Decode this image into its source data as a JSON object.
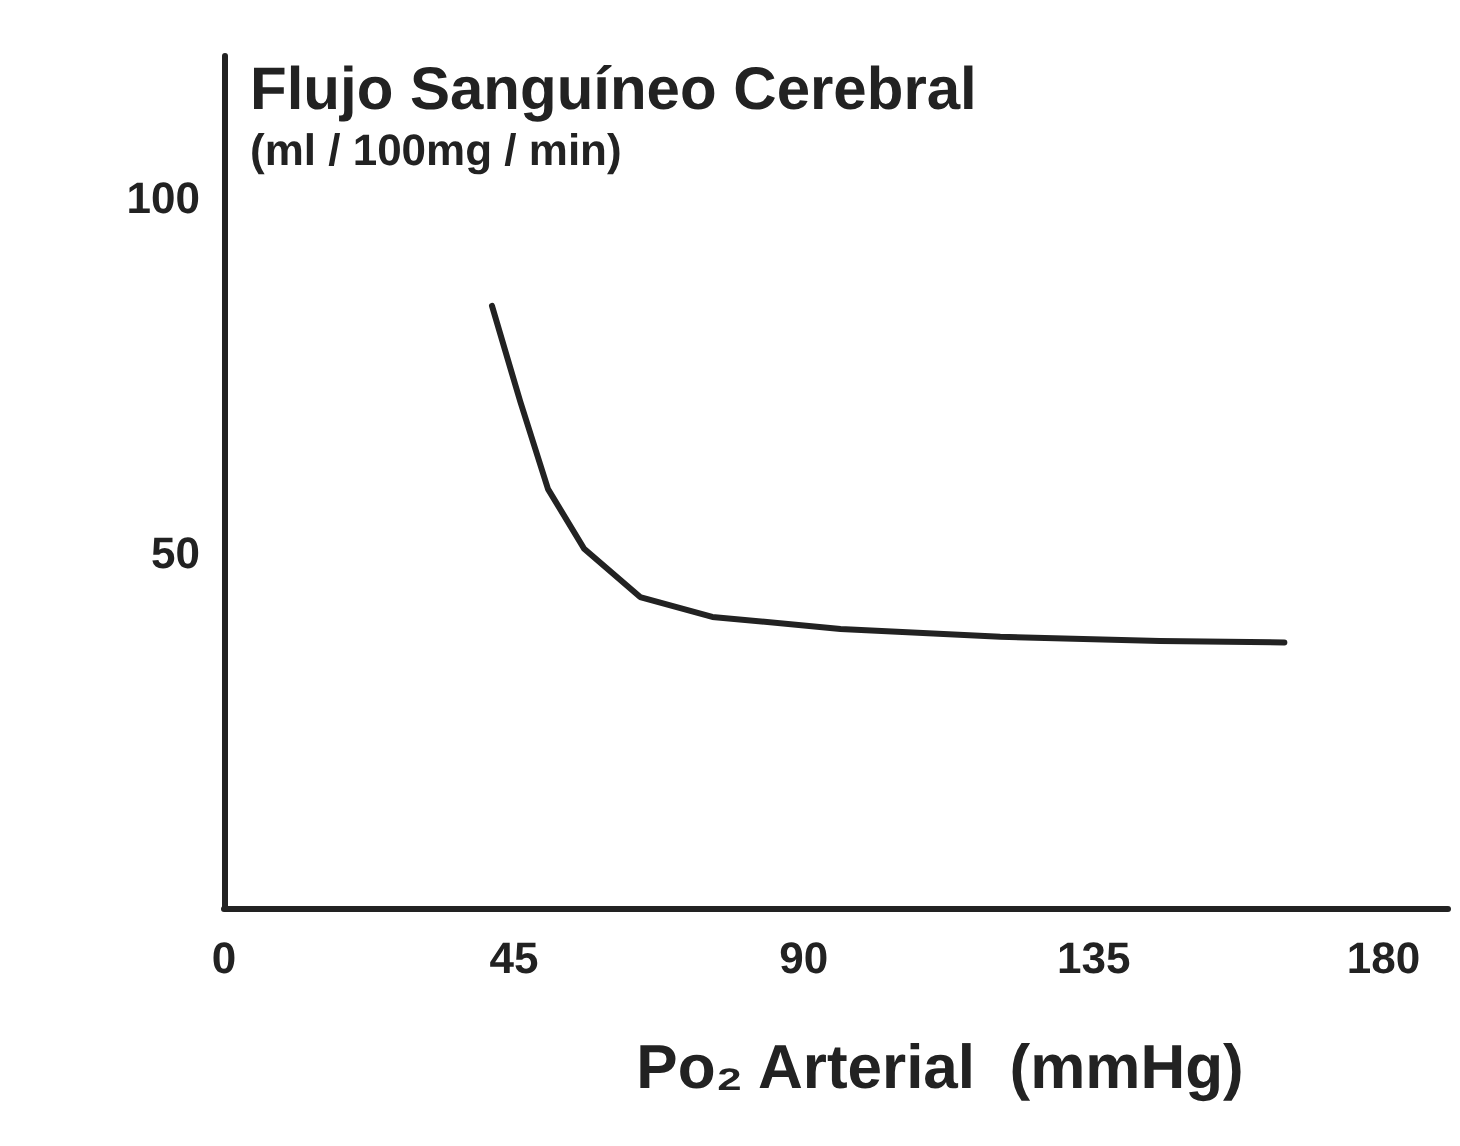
{
  "chart_data": {
    "type": "line",
    "ylabel": "Flujo Sanguíneo Cerebral\n(ml / 100mg / min)",
    "xlabel": "Po₂ Arterial  (mmHg)",
    "x": [
      41.6,
      46.0,
      50.3,
      55.9,
      64.6,
      75.8,
      95.7,
      120.5,
      145.3,
      164.6
    ],
    "series": [
      {
        "color": "#222222",
        "values": [
          84.8,
          71.3,
          59.0,
          50.6,
          43.8,
          41.0,
          39.3,
          38.2,
          37.6,
          37.4
        ]
      }
    ],
    "xlim": [
      0,
      190
    ],
    "xticks": [
      0,
      45,
      90,
      135,
      180
    ],
    "ylim": [
      0,
      120
    ],
    "yticks": [
      50,
      100
    ],
    "grid": false,
    "marker": "none",
    "line_style": "solid"
  }
}
